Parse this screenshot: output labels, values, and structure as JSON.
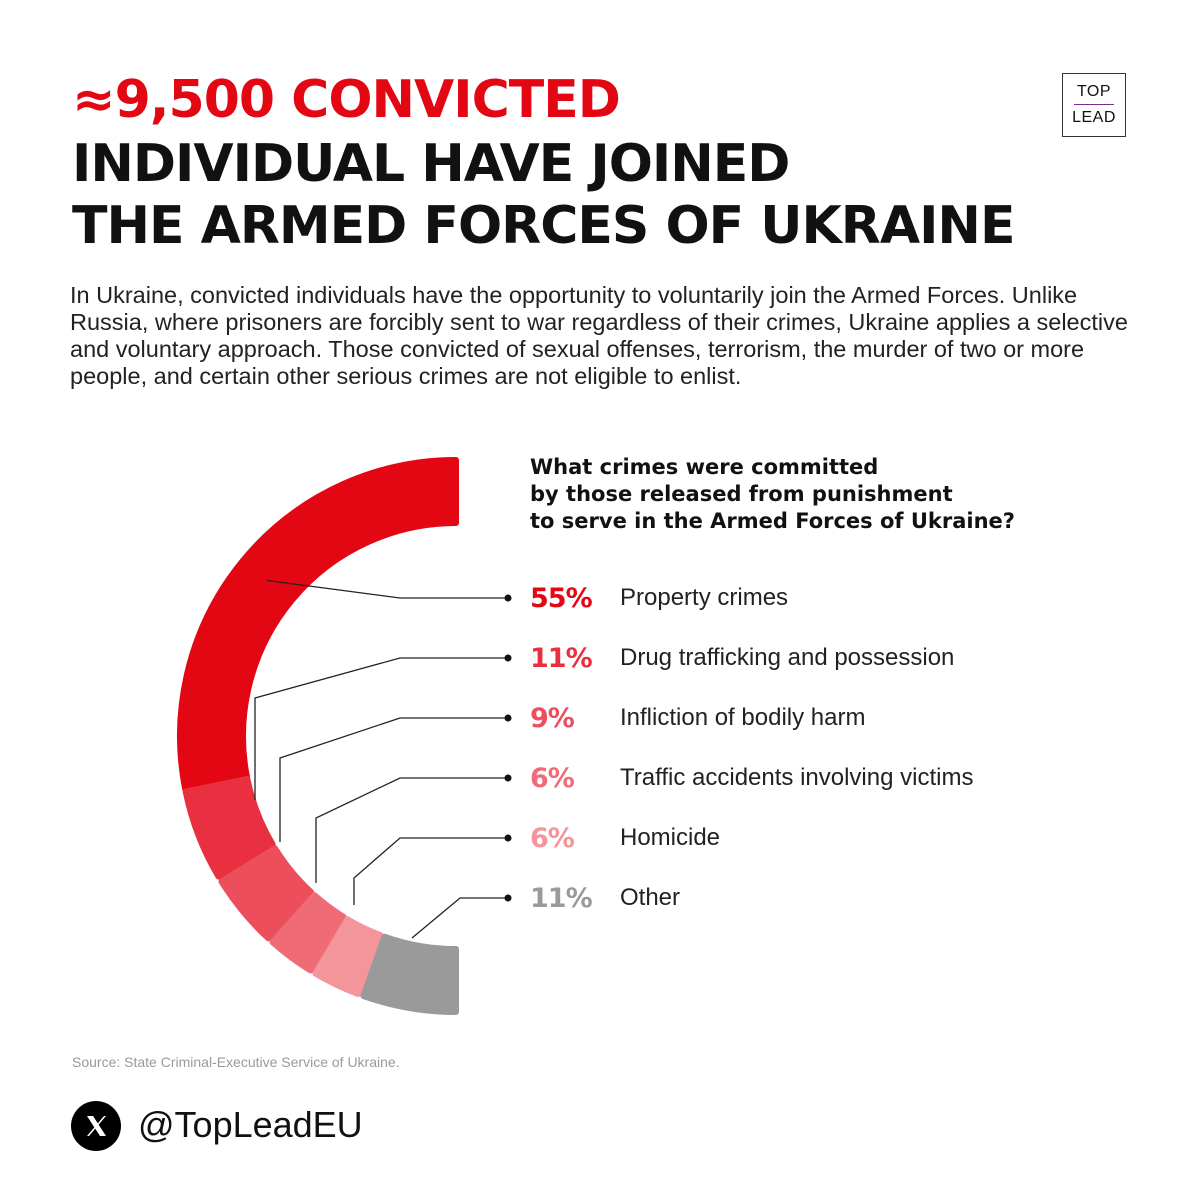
{
  "header": {
    "title_line1": "≈9,500 CONVICTED",
    "title_line2": "INDIVIDUAL HAVE JOINED",
    "title_line3": "THE ARMED FORCES OF UKRAINE"
  },
  "logo": {
    "top": "TOP",
    "bottom": "LEAD"
  },
  "intro": "In Ukraine, convicted individuals have the opportunity to voluntarily join the Armed Forces. Unlike Russia, where prisoners are forcibly sent to war regardless of their crimes, Ukraine applies a selective and voluntary approach. Those convicted of sexual offenses, terrorism, the murder of two or more people, and certain other serious crimes are not eligible to enlist.",
  "chart_data": {
    "type": "pie",
    "title": "What crimes were committed by those released from punishment to serve in the Armed Forces of Ukraine?",
    "title_lines": [
      "What crimes were committed",
      "by those released from punishment",
      "to serve in the Armed Forces of Ukraine?"
    ],
    "legend_placement": "right",
    "slices": [
      {
        "label": "Property crimes",
        "value": 55,
        "display": "55%",
        "color": "#e30613"
      },
      {
        "label": "Drug trafficking and possession",
        "value": 11,
        "display": "11%",
        "color": "#e83040"
      },
      {
        "label": "Infliction of bodily harm",
        "value": 9,
        "display": "9%",
        "color": "#ec4f5b"
      },
      {
        "label": "Traffic accidents involving victims",
        "value": 6,
        "display": "6%",
        "color": "#ef6c76"
      },
      {
        "label": "Homicide",
        "value": 6,
        "display": "6%",
        "color": "#f3959b"
      },
      {
        "label": "Other",
        "value": 11,
        "display": "11%",
        "color": "#9a9a9a"
      }
    ]
  },
  "source": "Source: State Criminal-Executive Service of Ukraine.",
  "social": {
    "icon": "x-logo-icon",
    "handle": "@TopLeadEU"
  }
}
